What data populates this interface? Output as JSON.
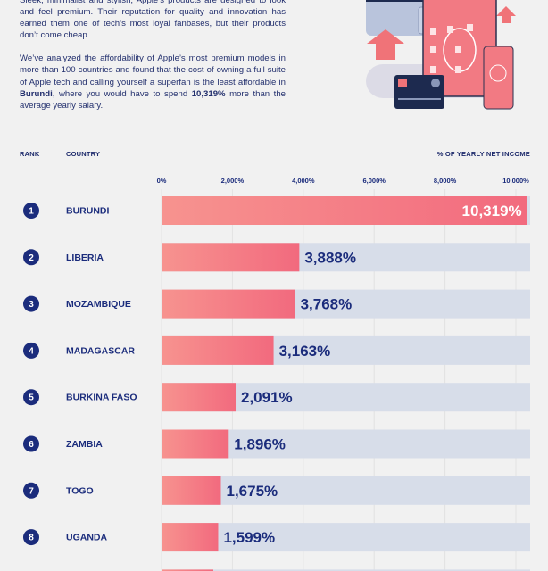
{
  "intro": {
    "p1": "Sleek, minimalist and stylish, Apple’s products are designed to look and feel premium. Their reputation for quality and innovation has earned them one of tech’s most loyal fanbases, but their products don’t come cheap.",
    "p2_a": "We’ve analyzed the affordability of Apple’s most premium models in more than 100 countries and found that the cost of owning a full suite of Apple tech and calling yourself a superfan is the least affordable in ",
    "p2_country": "Burundi",
    "p2_b": ", where you would have to spend ",
    "p2_value": "10,319%",
    "p2_c": " more than the average yearly salary."
  },
  "headers": {
    "rank": "RANK",
    "country": "COUNTRY",
    "value": "% OF YEARLY NET INCOME"
  },
  "colors": {
    "navy": "#1b2c7c",
    "bar_start": "#f7938f",
    "bar_end": "#f26a7e",
    "track": "#d7dde9",
    "background": "#f1f1f1"
  },
  "chart_data": {
    "type": "bar",
    "orientation": "horizontal",
    "xlabel": "% OF YEARLY NET INCOME",
    "xlim": [
      0,
      10319
    ],
    "ticks": [
      0,
      2000,
      4000,
      6000,
      8000,
      10000
    ],
    "tick_labels": [
      "0%",
      "2,000%",
      "4,000%",
      "6,000%",
      "8,000%",
      "10,000%"
    ],
    "ranks": [
      "1",
      "2",
      "3",
      "4",
      "5",
      "6",
      "7",
      "8"
    ],
    "categories": [
      "BURUNDI",
      "LIBERIA",
      "MOZAMBIQUE",
      "MADAGASCAR",
      "BURKINA FASO",
      "ZAMBIA",
      "TOGO",
      "UGANDA"
    ],
    "values": [
      10319,
      3888,
      3768,
      3163,
      2091,
      1896,
      1675,
      1599
    ],
    "labels": [
      "10,319%",
      "3,888%",
      "3,768%",
      "3,163%",
      "2,091%",
      "1,896%",
      "1,675%",
      "1,599%"
    ],
    "grid": true
  }
}
